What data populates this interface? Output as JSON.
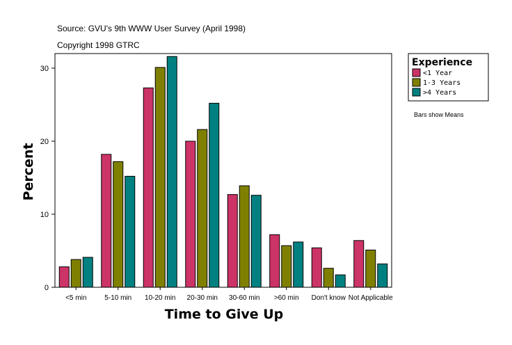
{
  "chart_data": {
    "type": "bar",
    "source_line": "Source: GVU's 9th WWW User Survey (April 1998)",
    "copyright_line": "Copyright 1998 GTRC",
    "xlabel": "Time to Give Up",
    "ylabel": "Percent",
    "ylim": [
      0,
      32
    ],
    "yticks": [
      0,
      10,
      20,
      30
    ],
    "categories": [
      "<5 min",
      "5-10 min",
      "10-20 min",
      "20-30 min",
      "30-60 min",
      ">60 min",
      "Don't know",
      "Not Applicable"
    ],
    "legend_title": "Experience",
    "legend_position": "top-right",
    "note": "Bars show Means",
    "series": [
      {
        "name": "<1 Year",
        "color": "#cc3366",
        "values": [
          2.8,
          18.2,
          27.3,
          20.0,
          12.7,
          7.2,
          5.4,
          6.4
        ]
      },
      {
        "name": "1-3 Years",
        "color": "#808000",
        "values": [
          3.8,
          17.2,
          30.1,
          21.6,
          13.9,
          5.7,
          2.6,
          5.1
        ]
      },
      {
        "name": ">4 Years",
        "color": "#008080",
        "values": [
          4.1,
          15.2,
          31.6,
          25.2,
          12.6,
          6.2,
          1.7,
          3.2
        ]
      }
    ]
  }
}
